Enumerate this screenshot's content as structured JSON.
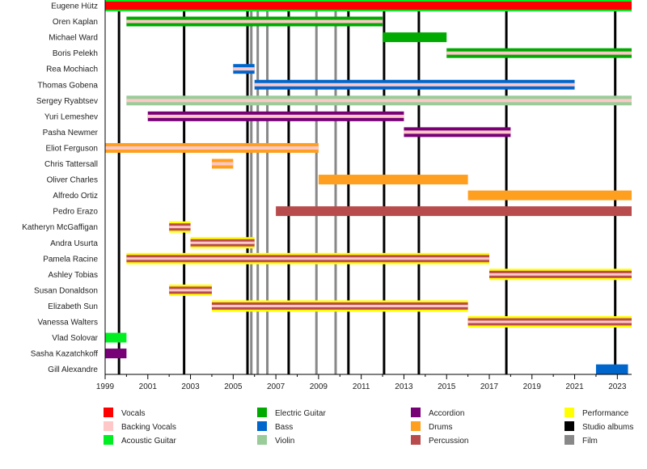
{
  "chart_data": {
    "type": "timeline",
    "title": "",
    "xlabel": "",
    "ylabel": "",
    "xlim": [
      1999,
      2023.67
    ],
    "x_ticks": [
      1999,
      2001,
      2003,
      2005,
      2007,
      2009,
      2011,
      2013,
      2015,
      2017,
      2019,
      2021,
      2023
    ],
    "x_minor_ticks": [
      2000,
      2002,
      2004,
      2006,
      2008,
      2010,
      2012,
      2014,
      2016,
      2018,
      2020,
      2022
    ],
    "grid": false,
    "legend_position": "bottom",
    "colors": {
      "Vocals": "#ff0000",
      "Backing Vocals": "#ffc8c8",
      "Acoustic Guitar": "#00ee22",
      "Electric Guitar": "#00aa00",
      "Bass": "#0066cc",
      "Violin": "#99cc99",
      "Accordion": "#770077",
      "Drums": "#ff9f1f",
      "Percussion": "#b84c4c",
      "Performance": "#ffff00",
      "Studio albums": "#000000",
      "Film": "#888888"
    },
    "legend": [
      [
        "Vocals",
        "Backing Vocals",
        "Acoustic Guitar"
      ],
      [
        "Electric Guitar",
        "Bass",
        "Violin"
      ],
      [
        "Accordion",
        "Drums",
        "Percussion"
      ],
      [
        "Performance",
        "Studio albums",
        "Film"
      ]
    ],
    "members": [
      {
        "name": "Eugene Hütz",
        "bars": [
          {
            "start": 1999,
            "end": 2023.67,
            "role": "Vocals",
            "outer": "Acoustic Guitar"
          }
        ]
      },
      {
        "name": "Oren Kaplan",
        "bars": [
          {
            "start": 2000,
            "end": 2012,
            "role": "Electric Guitar",
            "stripe": "Backing Vocals"
          }
        ]
      },
      {
        "name": "Michael Ward",
        "bars": [
          {
            "start": 2012,
            "end": 2015,
            "role": "Electric Guitar"
          }
        ]
      },
      {
        "name": "Boris Pelekh",
        "bars": [
          {
            "start": 2015,
            "end": 2023.67,
            "role": "Electric Guitar",
            "stripe": "Backing Vocals"
          }
        ]
      },
      {
        "name": "Rea Mochiach",
        "bars": [
          {
            "start": 2005,
            "end": 2006,
            "role": "Bass",
            "stripe": "Backing Vocals"
          }
        ]
      },
      {
        "name": "Thomas Gobena",
        "bars": [
          {
            "start": 2006,
            "end": 2021,
            "role": "Bass",
            "stripe": "Backing Vocals"
          }
        ]
      },
      {
        "name": "Sergey Ryabtsev",
        "bars": [
          {
            "start": 2000,
            "end": 2023.67,
            "role": "Violin",
            "stripe": "Backing Vocals"
          }
        ]
      },
      {
        "name": "Yuri Lemeshev",
        "bars": [
          {
            "start": 2001,
            "end": 2013,
            "role": "Accordion",
            "stripe": "Backing Vocals"
          }
        ]
      },
      {
        "name": "Pasha Newmer",
        "bars": [
          {
            "start": 2013,
            "end": 2018,
            "role": "Accordion",
            "stripe": "Backing Vocals"
          }
        ]
      },
      {
        "name": "Eliot Ferguson",
        "bars": [
          {
            "start": 1999,
            "end": 2009,
            "role": "Drums",
            "stripe": "Backing Vocals"
          }
        ]
      },
      {
        "name": "Chris Tattersall",
        "bars": [
          {
            "start": 2004,
            "end": 2005,
            "role": "Drums",
            "stripe": "Backing Vocals"
          }
        ]
      },
      {
        "name": "Oliver Charles",
        "bars": [
          {
            "start": 2009,
            "end": 2016,
            "role": "Drums"
          }
        ]
      },
      {
        "name": "Alfredo Ortiz",
        "bars": [
          {
            "start": 2016,
            "end": 2023.67,
            "role": "Drums"
          }
        ]
      },
      {
        "name": "Pedro Erazo",
        "bars": [
          {
            "start": 2007,
            "end": 2023.67,
            "role": "Percussion"
          }
        ]
      },
      {
        "name": "Katheryn McGaffigan",
        "bars": [
          {
            "start": 2002,
            "end": 2003,
            "role": "Percussion",
            "stripe": "Backing Vocals",
            "outer": "Performance"
          }
        ]
      },
      {
        "name": "Andra Usurta",
        "bars": [
          {
            "start": 2003,
            "end": 2006,
            "role": "Percussion",
            "stripe": "Backing Vocals",
            "outer": "Performance"
          }
        ]
      },
      {
        "name": "Pamela Racine",
        "bars": [
          {
            "start": 2000,
            "end": 2017,
            "role": "Percussion",
            "stripe": "Backing Vocals",
            "outer": "Performance"
          }
        ]
      },
      {
        "name": "Ashley Tobias",
        "bars": [
          {
            "start": 2017,
            "end": 2023.67,
            "role": "Percussion",
            "stripe": "Backing Vocals",
            "outer": "Performance"
          }
        ]
      },
      {
        "name": "Susan Donaldson",
        "bars": [
          {
            "start": 2002,
            "end": 2004,
            "role": "Percussion",
            "stripe": "Backing Vocals",
            "outer": "Performance"
          }
        ]
      },
      {
        "name": "Elizabeth Sun",
        "bars": [
          {
            "start": 2004,
            "end": 2016,
            "role": "Percussion",
            "stripe": "Backing Vocals",
            "outer": "Performance"
          }
        ]
      },
      {
        "name": "Vanessa Walters",
        "bars": [
          {
            "start": 2016,
            "end": 2023.67,
            "role": "Percussion",
            "stripe": "Backing Vocals",
            "outer": "Performance"
          }
        ]
      },
      {
        "name": "Vlad Solovar",
        "bars": [
          {
            "start": 1999,
            "end": 2000,
            "role": "Acoustic Guitar"
          }
        ]
      },
      {
        "name": "Sasha Kazatchkoff",
        "bars": [
          {
            "start": 1999,
            "end": 2000,
            "role": "Accordion"
          }
        ]
      },
      {
        "name": "Gill Alexandre",
        "bars": [
          {
            "start": 2022,
            "end": 2023.5,
            "role": "Bass"
          }
        ]
      }
    ],
    "studio_albums": [
      1999.65,
      2002.7,
      2005.67,
      2007.6,
      2010.4,
      2012.07,
      2013.7,
      2017.8,
      2022.9
    ],
    "films": [
      2005.85,
      2006.15,
      2006.6,
      2008.9,
      2009.8
    ]
  }
}
